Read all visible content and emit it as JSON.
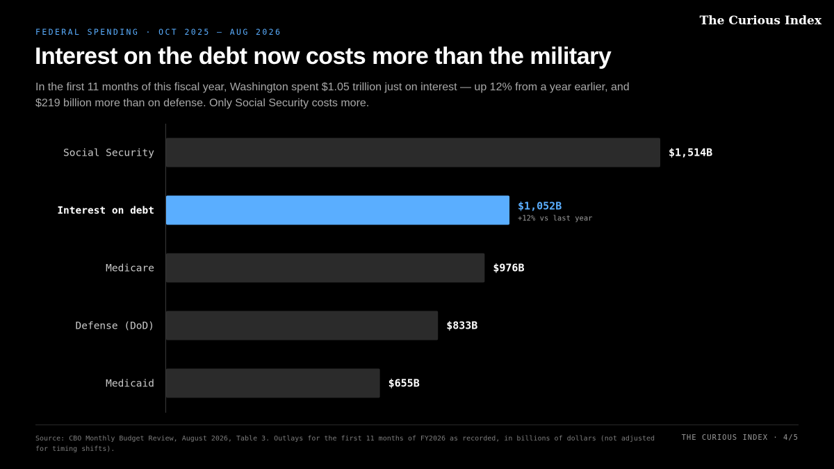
{
  "header": {
    "kicker": "FEDERAL SPENDING · OCT 2025 – AUG 2026",
    "brand": "The Curious Index",
    "title": "Interest on the debt now costs more than the military",
    "subtitle": "In the first 11 months of this fiscal year, Washington spent $1.05 trillion just on interest — up 12% from a year earlier, and $219 billion more than on defense. Only Social Security costs more."
  },
  "chart_data": {
    "type": "bar",
    "orientation": "horizontal",
    "categories": [
      "Social Security",
      "Interest on debt",
      "Medicare",
      "Defense (DoD)",
      "Medicaid"
    ],
    "values": [
      1514,
      1052,
      976,
      833,
      655
    ],
    "value_labels": [
      "$1,514B",
      "$1,052B",
      "$976B",
      "$833B",
      "$655B"
    ],
    "unit": "billions of dollars",
    "highlight_index": 1,
    "highlight_note": "+12% vs last year",
    "xlim": [
      0,
      1514
    ],
    "grid": false,
    "colors": {
      "bar": "#2b2b2b",
      "highlight": "#5aaeff",
      "axis": "#3a3a3a",
      "label": "#c8c8c8",
      "value": "#ffffff"
    }
  },
  "footer": {
    "source": "Source: CBO Monthly Budget Review, August 2026, Table 3. Outlays for the first 11 months of FY2026 as recorded, in billions of dollars (not adjusted for timing shifts).",
    "pager": "THE CURIOUS INDEX · 4/5"
  }
}
